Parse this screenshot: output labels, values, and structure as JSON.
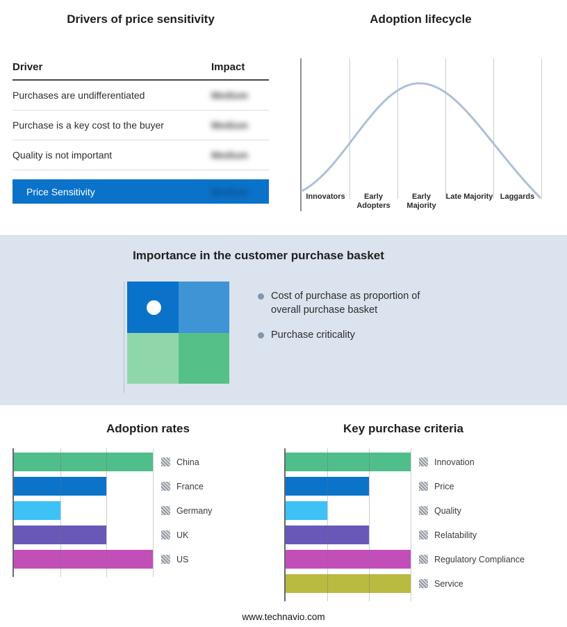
{
  "drivers": {
    "title": "Drivers of price sensitivity",
    "columns": {
      "driver": "Driver",
      "impact": "Impact"
    },
    "rows": [
      {
        "driver": "Purchases are undifferentiated",
        "impact": "Medium"
      },
      {
        "driver": "Purchase is a key cost to the buyer",
        "impact": "Medium"
      },
      {
        "driver": "Quality is not important",
        "impact": "Medium"
      }
    ],
    "summary": {
      "label": "Price Sensitivity",
      "impact": "Medium"
    }
  },
  "lifecycle": {
    "title": "Adoption lifecycle"
  },
  "basket": {
    "title": "Importance in the customer purchase basket",
    "bullets": [
      "Cost of purchase as proportion of overall purchase basket",
      "Purchase criticality"
    ]
  },
  "footer": "www.technavio.com",
  "colors": {
    "accent_blue": "#0a72c8",
    "summary_impact_text": "#0d4a7f",
    "band_background": "#dbe3ee",
    "curve": "#aebfd8",
    "bullet_dot": "#8195ad",
    "quadrant": {
      "top_left": "#0a72c8",
      "top_right": "#3e94d4",
      "bottom_left": "#8fd6ab",
      "bottom_right": "#55c189"
    }
  },
  "chart_data": [
    {
      "type": "table",
      "title": "Drivers of price sensitivity",
      "columns": [
        "Driver",
        "Impact"
      ],
      "rows": [
        [
          "Purchases are undifferentiated",
          "Medium"
        ],
        [
          "Purchase is a key cost to the buyer",
          "Medium"
        ],
        [
          "Quality is not important",
          "Medium"
        ],
        [
          "Price Sensitivity",
          "Medium"
        ]
      ],
      "note": "Impact values are blurred in the source image"
    },
    {
      "type": "line",
      "title": "Adoption lifecycle",
      "subtype": "bell-curve",
      "categories": [
        "Innovators",
        "Early Adopters",
        "Early Majority",
        "Late Majority",
        "Laggards"
      ],
      "description": "Normal-distribution adoption curve rising from Innovators, peaking at Early Majority, falling to Laggards",
      "grid": true,
      "legend_position": "none"
    },
    {
      "type": "bar",
      "title": "Adoption rates",
      "orientation": "horizontal",
      "categories": [
        "China",
        "France",
        "Germany",
        "UK",
        "US"
      ],
      "values": [
        3,
        2,
        1,
        2,
        3
      ],
      "xlim": [
        0,
        3
      ],
      "colors": [
        "#4fbe8b",
        "#0b74c9",
        "#3ec1f5",
        "#6a58b8",
        "#c24fb8"
      ],
      "grid": true,
      "legend_position": "right"
    },
    {
      "type": "bar",
      "title": "Key purchase criteria",
      "orientation": "horizontal",
      "categories": [
        "Innovation",
        "Price",
        "Quality",
        "Relatability",
        "Regulatory Compliance",
        "Service"
      ],
      "values": [
        3,
        2,
        1,
        2,
        3,
        3
      ],
      "xlim": [
        0,
        3
      ],
      "colors": [
        "#4fbe8b",
        "#0b74c9",
        "#3ec1f5",
        "#6a58b8",
        "#c24fb8",
        "#b9ba40"
      ],
      "grid": true,
      "legend_position": "right"
    }
  ]
}
